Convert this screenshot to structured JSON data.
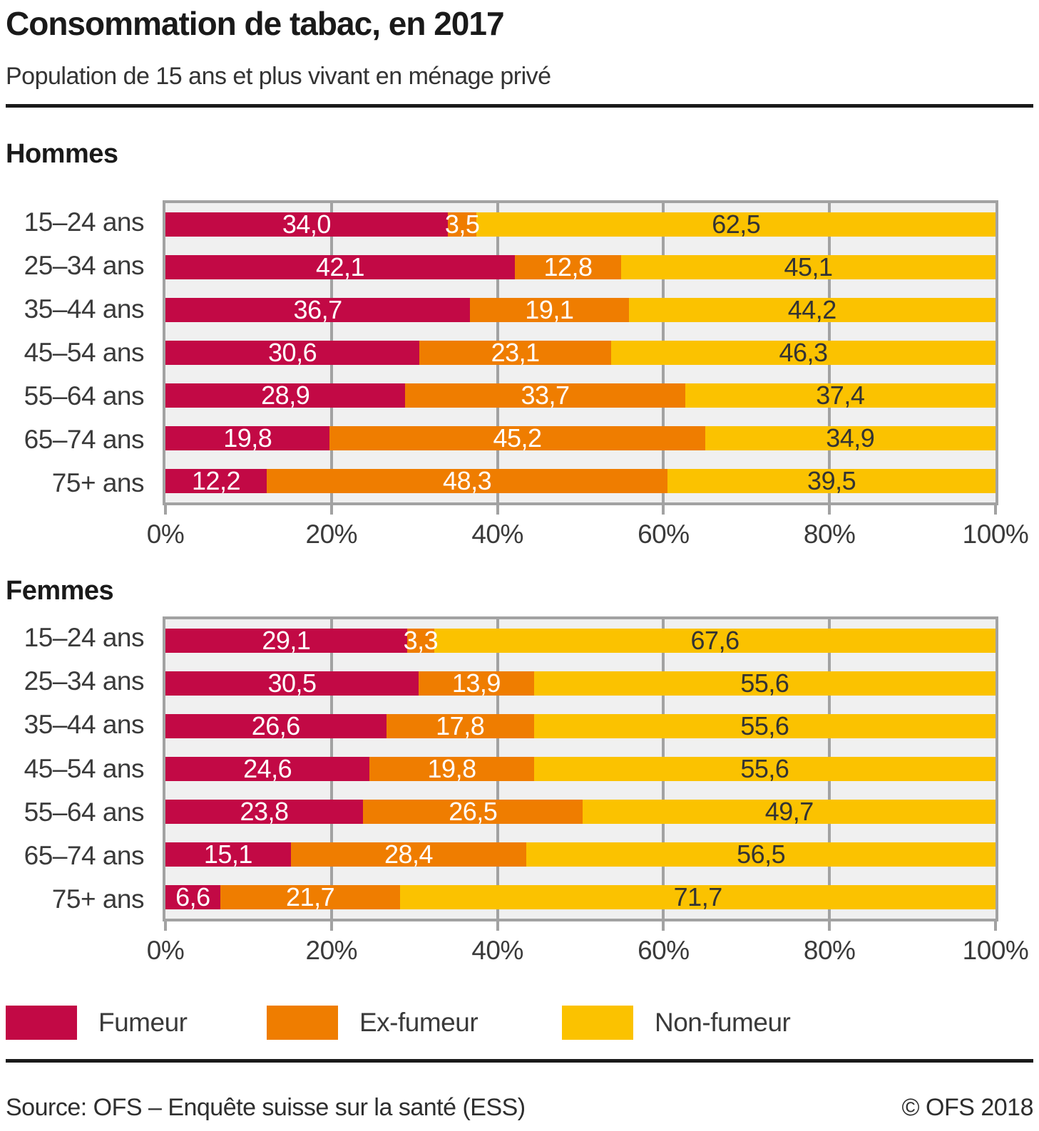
{
  "header": {
    "title": "Consommation de tabac, en 2017",
    "subtitle": "Population de 15 ans et plus vivant en ménage privé"
  },
  "colors": {
    "fumeur": "#c20945",
    "ex_fumeur": "#ef7d00",
    "non_fumeur": "#fbc200",
    "plot_background": "#f0f0f0",
    "grid": "#a2a2a2",
    "rule": "#1a1a1a"
  },
  "axis": {
    "ticks": [
      {
        "value": 0,
        "label": "0%"
      },
      {
        "value": 20,
        "label": "20%"
      },
      {
        "value": 40,
        "label": "40%"
      },
      {
        "value": 60,
        "label": "60%"
      },
      {
        "value": 80,
        "label": "80%"
      },
      {
        "value": 100,
        "label": "100%"
      }
    ]
  },
  "chart_data": [
    {
      "type": "bar",
      "orientation": "horizontal",
      "stacked": true,
      "title": "Hommes",
      "xlim": [
        0,
        100
      ],
      "xticks": [
        "0%",
        "20%",
        "40%",
        "60%",
        "80%",
        "100%"
      ],
      "grid": true,
      "legend_position": "bottom",
      "categories": [
        "15–24 ans",
        "25–34 ans",
        "35–44 ans",
        "45–54 ans",
        "55–64 ans",
        "65–74 ans",
        "75+ ans"
      ],
      "series": [
        {
          "name": "Fumeur",
          "values": [
            34.0,
            42.1,
            36.7,
            30.6,
            28.9,
            19.8,
            12.2
          ],
          "labels": [
            "34,0",
            "42,1",
            "36,7",
            "30,6",
            "28,9",
            "19,8",
            "12,2"
          ]
        },
        {
          "name": "Ex-fumeur",
          "values": [
            3.5,
            12.8,
            19.1,
            23.1,
            33.7,
            45.2,
            48.3
          ],
          "labels": [
            "3,5",
            "12,8",
            "19,1",
            "23,1",
            "33,7",
            "45,2",
            "48,3"
          ]
        },
        {
          "name": "Non-fumeur",
          "values": [
            62.5,
            45.1,
            44.2,
            46.3,
            37.4,
            34.9,
            39.5
          ],
          "labels": [
            "62,5",
            "45,1",
            "44,2",
            "46,3",
            "37,4",
            "34,9",
            "39,5"
          ]
        }
      ]
    },
    {
      "type": "bar",
      "orientation": "horizontal",
      "stacked": true,
      "title": "Femmes",
      "xlim": [
        0,
        100
      ],
      "xticks": [
        "0%",
        "20%",
        "40%",
        "60%",
        "80%",
        "100%"
      ],
      "grid": true,
      "legend_position": "bottom",
      "categories": [
        "15–24 ans",
        "25–34 ans",
        "35–44 ans",
        "45–54 ans",
        "55–64 ans",
        "65–74 ans",
        "75+ ans"
      ],
      "series": [
        {
          "name": "Fumeur",
          "values": [
            29.1,
            30.5,
            26.6,
            24.6,
            23.8,
            15.1,
            6.6
          ],
          "labels": [
            "29,1",
            "30,5",
            "26,6",
            "24,6",
            "23,8",
            "15,1",
            "6,6"
          ]
        },
        {
          "name": "Ex-fumeur",
          "values": [
            3.3,
            13.9,
            17.8,
            19.8,
            26.5,
            28.4,
            21.7
          ],
          "labels": [
            "3,3",
            "13,9",
            "17,8",
            "19,8",
            "26,5",
            "28,4",
            "21,7"
          ]
        },
        {
          "name": "Non-fumeur",
          "values": [
            67.6,
            55.6,
            55.6,
            55.6,
            49.7,
            56.5,
            71.7
          ],
          "labels": [
            "67,6",
            "55,6",
            "55,6",
            "55,6",
            "49,7",
            "56,5",
            "71,7"
          ]
        }
      ]
    }
  ],
  "legend": {
    "items": [
      {
        "label": "Fumeur",
        "color_key": "fumeur"
      },
      {
        "label": "Ex-fumeur",
        "color_key": "ex_fumeur"
      },
      {
        "label": "Non-fumeur",
        "color_key": "non_fumeur"
      }
    ],
    "positions": [
      0,
      366,
      780
    ]
  },
  "footer": {
    "source": "Source: OFS – Enquête suisse sur la santé (ESS)",
    "copyright": "© OFS 2018"
  }
}
